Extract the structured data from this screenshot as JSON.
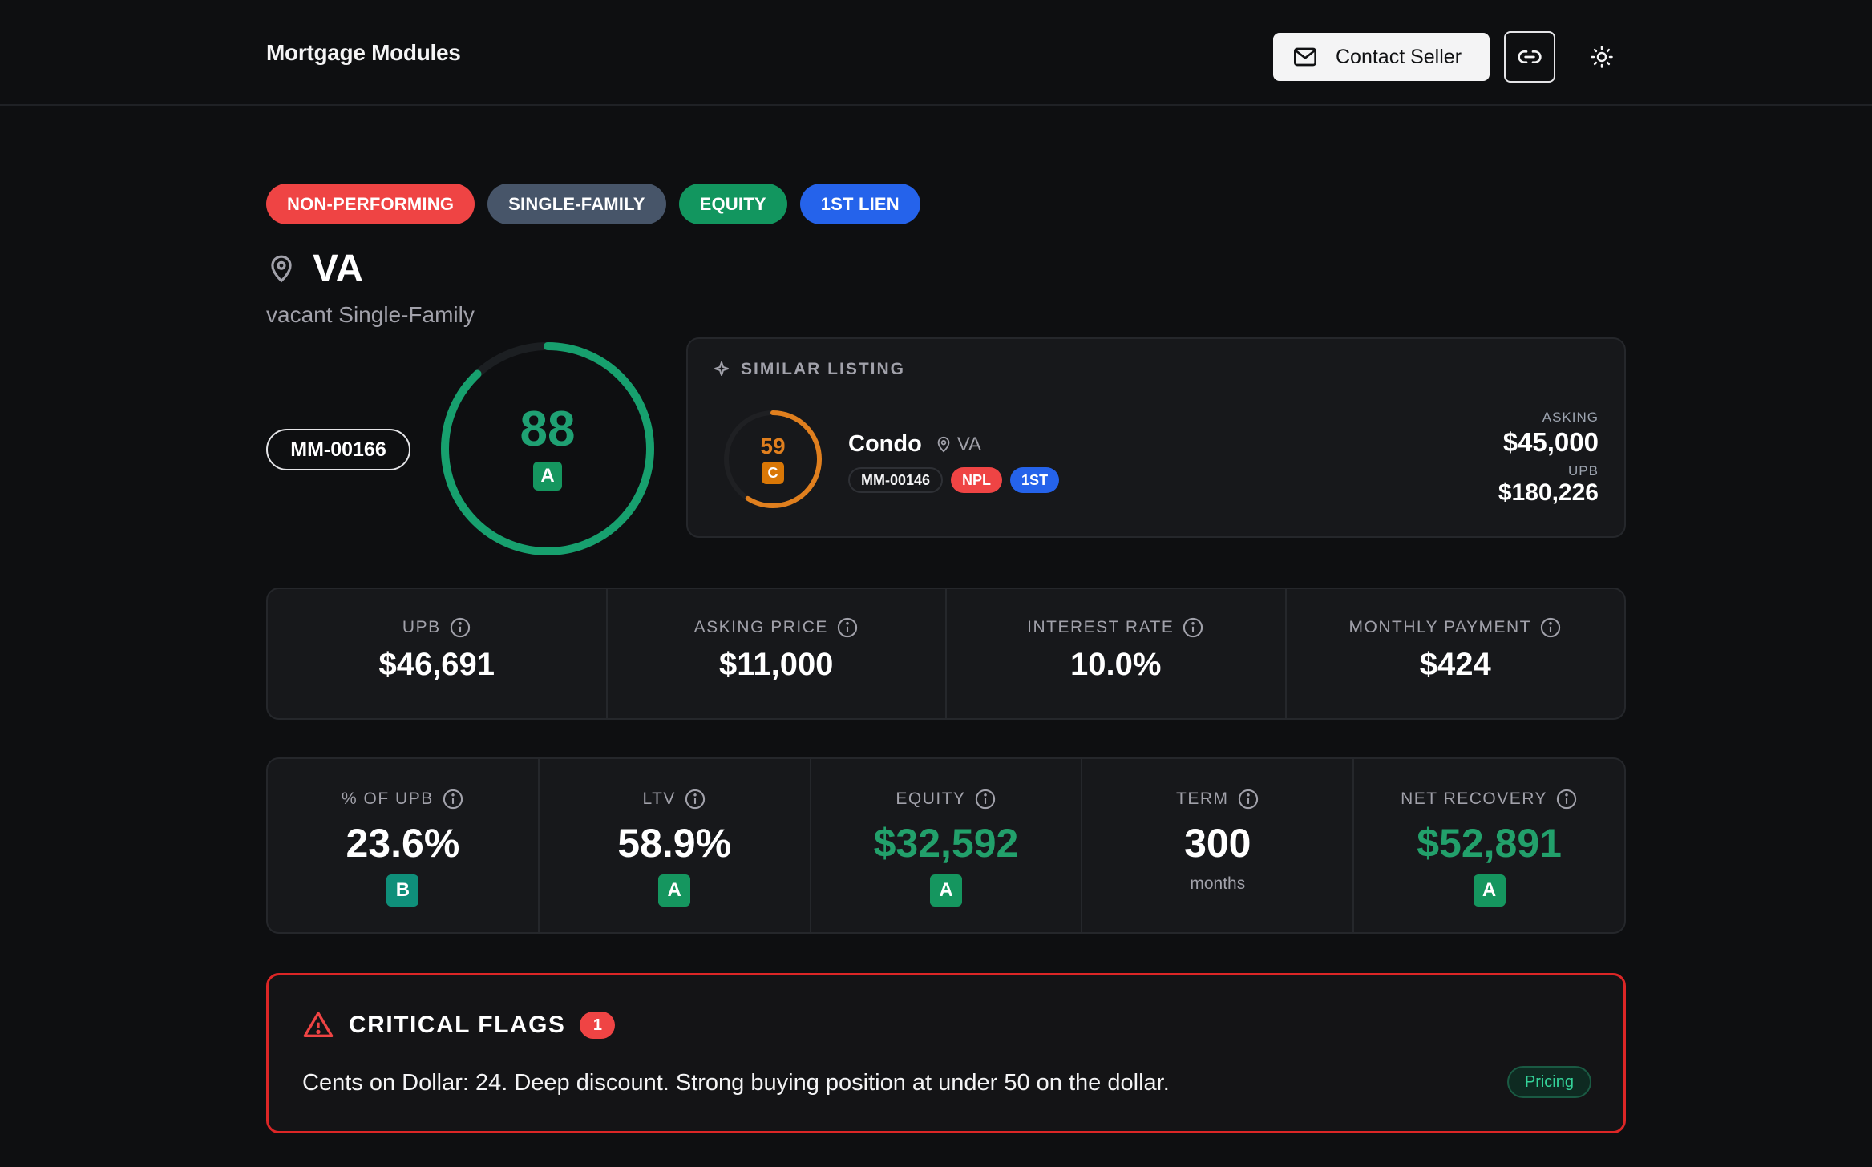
{
  "header": {
    "brand": "Mortgage Modules",
    "contact_label": "Contact Seller"
  },
  "tags": [
    {
      "label": "NON-PERFORMING",
      "color": "#ef4444"
    },
    {
      "label": "SINGLE-FAMILY",
      "color": "#475569"
    },
    {
      "label": "EQUITY",
      "color": "#12965f"
    },
    {
      "label": "1ST LIEN",
      "color": "#2563eb"
    }
  ],
  "property": {
    "state": "VA",
    "subtitle": "vacant Single-Family",
    "id": "MM-00166",
    "score": "88",
    "score_fraction": 0.88,
    "grade": "A",
    "score_color": "#17a06e"
  },
  "similar": {
    "heading": "SIMILAR LISTING",
    "score": "59",
    "score_fraction": 0.59,
    "grade": "C",
    "score_color": "#e07f1e",
    "name": "Condo",
    "state": "VA",
    "id": "MM-00146",
    "tag_npl": "NPL",
    "tag_lien": "1ST",
    "asking_label": "ASKING",
    "asking_value": "$45,000",
    "upb_label": "UPB",
    "upb_value": "$180,226"
  },
  "metrics_top": [
    {
      "label": "UPB",
      "value": "$46,691"
    },
    {
      "label": "ASKING PRICE",
      "value": "$11,000"
    },
    {
      "label": "INTEREST RATE",
      "value": "10.0%"
    },
    {
      "label": "MONTHLY PAYMENT",
      "value": "$424"
    }
  ],
  "metrics_bottom": [
    {
      "label": "% OF UPB",
      "value": "23.6%",
      "grade": "B",
      "grade_color": "#0f8f7a",
      "value_color": "#ffffff"
    },
    {
      "label": "LTV",
      "value": "58.9%",
      "grade": "A",
      "grade_color": "#15965f",
      "value_color": "#ffffff"
    },
    {
      "label": "EQUITY",
      "value": "$32,592",
      "grade": "A",
      "grade_color": "#15965f",
      "value_color": "#22a06b"
    },
    {
      "label": "TERM",
      "value": "300",
      "unit": "months",
      "value_color": "#ffffff"
    },
    {
      "label": "NET RECOVERY",
      "value": "$52,891",
      "grade": "A",
      "grade_color": "#15965f",
      "value_color": "#22a06b"
    }
  ],
  "flags": {
    "title": "CRITICAL FLAGS",
    "count": "1",
    "message": "Cents on Dollar: 24. Deep discount. Strong buying position at under 50 on the dollar.",
    "badge": "Pricing"
  }
}
